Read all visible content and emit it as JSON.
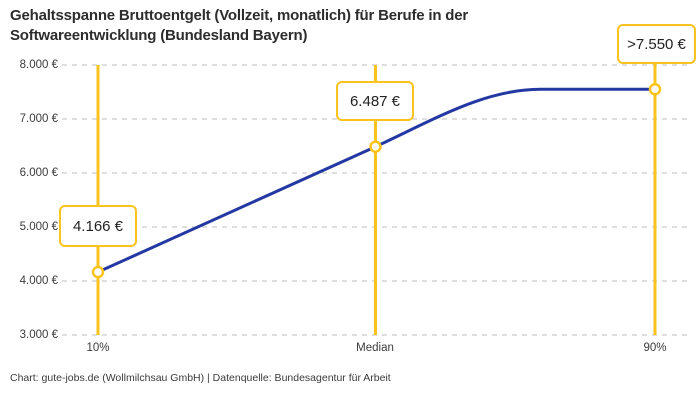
{
  "colors": {
    "accent_yellow": "#fcc31c",
    "line_blue": "#2438a4",
    "grid_gray": "#cbcbcb",
    "title_text": "#2d2d2d",
    "axis_text": "#3c3c3c",
    "marker_fill": "#ffffff"
  },
  "footer": {
    "text": "Chart: gute-jobs.de (Wollmilchsau GmbH) | Datenquelle: Bundesagentur für Arbeit"
  },
  "chart_data": {
    "type": "line",
    "title": "Gehaltsspanne Bruttoentgelt (Vollzeit, monatlich) für Berufe in der Softwareentwicklung (Bundesland Bayern)",
    "xlabel": "",
    "ylabel": "",
    "ylim": [
      3000,
      8000
    ],
    "grid": "horizontal-dashed",
    "legend": "none",
    "x_labels": [
      "10%",
      "Median",
      "90%"
    ],
    "y_tick_labels": [
      "8.000 €",
      "7.000 €",
      "6.000 €",
      "5.000 €",
      "4.000 €",
      "3.000 €"
    ],
    "y_tick_values": [
      8000,
      7000,
      6000,
      5000,
      4000,
      3000
    ],
    "points": [
      {
        "x_label": "10%",
        "value": 4166,
        "label": "4.166 €",
        "capped": false
      },
      {
        "x_label": "Median",
        "value": 6487,
        "label": "6.487 €",
        "capped": false
      },
      {
        "x_label": "90%",
        "value": 7550,
        "label": ">7.550 €",
        "capped": true
      }
    ],
    "curve_shape": "rises from 10% through Median then plateaus before 90%"
  }
}
